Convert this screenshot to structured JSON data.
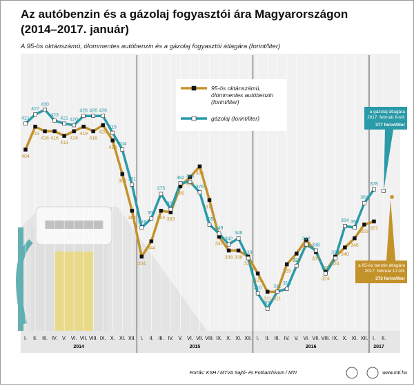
{
  "chart_data": {
    "type": "line",
    "title": [
      "Az autóbenzin és a gázolaj fogyasztói ára Magyarországon",
      "(2014–2017. január)"
    ],
    "subtitle": "A 95-ös oktánszámú, ólommentes autóbenzin és a gázolaj fogyasztói átlagára (forint/liter)",
    "categories": [
      "I.",
      "II.",
      "III.",
      "IV.",
      "V.",
      "VI.",
      "VII.",
      "VIII.",
      "IX.",
      "X.",
      "XI.",
      "XII.",
      "I.",
      "II.",
      "III.",
      "IV.",
      "V.",
      "VI.",
      "VII.",
      "VIII.",
      "IX.",
      "X.",
      "XI.",
      "XII.",
      "I.",
      "II.",
      "III.",
      "IV.",
      "V.",
      "VI.",
      "VII.",
      "VIII.",
      "IX.",
      "X.",
      "XI.",
      "XII.",
      "I.",
      "II."
    ],
    "years": [
      "2014",
      "2015",
      "2016",
      "2017"
    ],
    "ylim": [
      290,
      450
    ],
    "series": [
      {
        "name": [
          "95-ös oktánszámú,",
          "ólommentes autóbenzin",
          "(forint/liter)"
        ],
        "color": "#c4922a",
        "marker": "#111111",
        "values": [
          404,
          419,
          416,
          416,
          413,
          416,
          419,
          416,
          420,
          410,
          388,
          364,
          334,
          344,
          364,
          363,
          380,
          386,
          393,
          371,
          347,
          338,
          338,
          334,
          323,
          311,
          311,
          329,
          336,
          345,
          337,
          324,
          334,
          340,
          346,
          355,
          357,
          null
        ]
      },
      {
        "name": [
          "gázolaj (forint/liter)"
        ],
        "color": "#2a9aa8",
        "marker": "#ffffff",
        "values": [
          421,
          427,
          430,
          423,
          421,
          420,
          426,
          426,
          426,
          415,
          404,
          381,
          353,
          359,
          375,
          365,
          382,
          383,
          376,
          355,
          349,
          342,
          346,
          333,
          310,
          300,
          311,
          313,
          328,
          342,
          338,
          323,
          333,
          354,
          353,
          369,
          378,
          null
        ]
      }
    ],
    "annotations": [
      {
        "lines": [
          "a gázolaj átlagára",
          "2017. február 8-tól:"
        ],
        "value": 377,
        "value_label": "377 forint/liter",
        "color": "#2a9aa8"
      },
      {
        "lines": [
          "a 95-ös benzin átlagára",
          "2017. február 17-től:"
        ],
        "value": 373,
        "value_label": "373 forint/liter",
        "color": "#c4922a"
      }
    ],
    "source": "Forrás: KSH / MTVA Sajtó- és Fotóarchívum / MTI",
    "website": "www.mti.hu"
  }
}
